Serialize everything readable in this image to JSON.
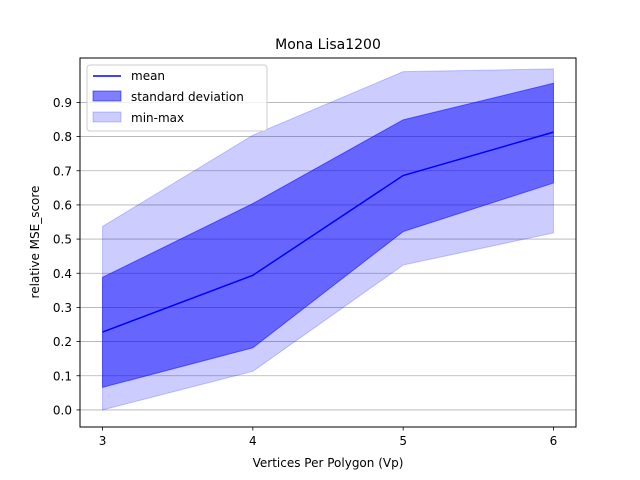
{
  "chart_data": {
    "type": "line",
    "title": "Mona Lisa1200",
    "xlabel": "Vertices Per Polygon (Vp)",
    "ylabel": "relative MSE_score",
    "x": [
      3,
      4,
      5,
      6
    ],
    "xlim": [
      2.85,
      6.15
    ],
    "ylim": [
      -0.05,
      1.03
    ],
    "xticks": [
      3,
      4,
      5,
      6
    ],
    "yticks": [
      0.0,
      0.1,
      0.2,
      0.3,
      0.4,
      0.5,
      0.6,
      0.7,
      0.8,
      0.9
    ],
    "grid": "horizontal",
    "legend_position": "top-left",
    "series": [
      {
        "name": "mean",
        "kind": "line",
        "color": "#0000ff",
        "values": [
          0.228,
          0.394,
          0.686,
          0.813
        ]
      },
      {
        "name": "standard deviation",
        "kind": "band",
        "color": "#0000ff",
        "opacity": 0.5,
        "lower": [
          0.066,
          0.182,
          0.522,
          0.664
        ],
        "upper": [
          0.388,
          0.604,
          0.849,
          0.956
        ]
      },
      {
        "name": "min-max",
        "kind": "band",
        "color": "#0000ff",
        "opacity": 0.2,
        "lower": [
          0.0,
          0.113,
          0.424,
          0.518
        ],
        "upper": [
          0.537,
          0.804,
          0.99,
          0.998
        ]
      }
    ]
  }
}
